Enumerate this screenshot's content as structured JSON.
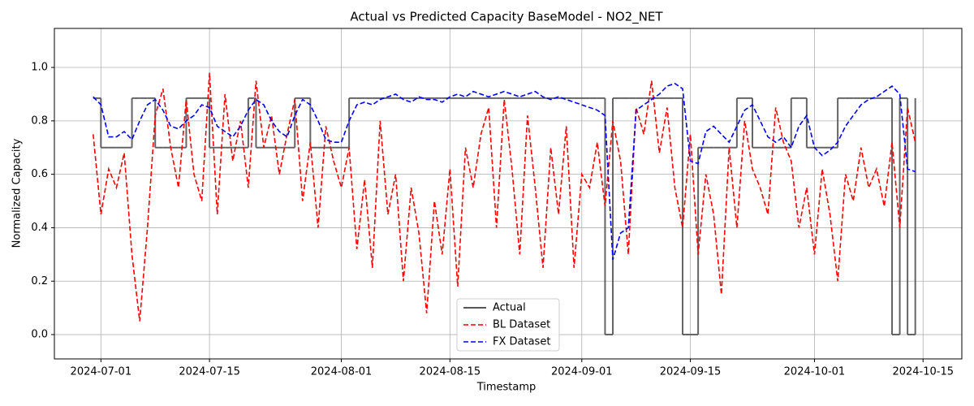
{
  "chart_data": {
    "type": "line",
    "title": "Actual vs Predicted Capacity BaseModel - NO2_NET",
    "x_label": "Timestamp",
    "y_label": "Normalized Capacity",
    "x": [
      "2024-06-30",
      "2024-07-01",
      "2024-07-02",
      "2024-07-03",
      "2024-07-04",
      "2024-07-05",
      "2024-07-06",
      "2024-07-07",
      "2024-07-08",
      "2024-07-09",
      "2024-07-10",
      "2024-07-11",
      "2024-07-12",
      "2024-07-13",
      "2024-07-14",
      "2024-07-15",
      "2024-07-16",
      "2024-07-17",
      "2024-07-18",
      "2024-07-19",
      "2024-07-20",
      "2024-07-21",
      "2024-07-22",
      "2024-07-23",
      "2024-07-24",
      "2024-07-25",
      "2024-07-26",
      "2024-07-27",
      "2024-07-28",
      "2024-07-29",
      "2024-07-30",
      "2024-07-31",
      "2024-08-01",
      "2024-08-02",
      "2024-08-03",
      "2024-08-04",
      "2024-08-05",
      "2024-08-06",
      "2024-08-07",
      "2024-08-08",
      "2024-08-09",
      "2024-08-10",
      "2024-08-11",
      "2024-08-12",
      "2024-08-13",
      "2024-08-14",
      "2024-08-15",
      "2024-08-16",
      "2024-08-17",
      "2024-08-18",
      "2024-08-19",
      "2024-08-20",
      "2024-08-21",
      "2024-08-22",
      "2024-08-23",
      "2024-08-24",
      "2024-08-25",
      "2024-08-26",
      "2024-08-27",
      "2024-08-28",
      "2024-08-29",
      "2024-08-30",
      "2024-08-31",
      "2024-09-01",
      "2024-09-02",
      "2024-09-03",
      "2024-09-04",
      "2024-09-05",
      "2024-09-06",
      "2024-09-07",
      "2024-09-08",
      "2024-09-09",
      "2024-09-10",
      "2024-09-11",
      "2024-09-12",
      "2024-09-13",
      "2024-09-14",
      "2024-09-15",
      "2024-09-16",
      "2024-09-17",
      "2024-09-18",
      "2024-09-19",
      "2024-09-20",
      "2024-09-21",
      "2024-09-22",
      "2024-09-23",
      "2024-09-24",
      "2024-09-25",
      "2024-09-26",
      "2024-09-27",
      "2024-09-28",
      "2024-09-29",
      "2024-09-30",
      "2024-10-01",
      "2024-10-02",
      "2024-10-03",
      "2024-10-04",
      "2024-10-05",
      "2024-10-06",
      "2024-10-07",
      "2024-10-08",
      "2024-10-09",
      "2024-10-10",
      "2024-10-11",
      "2024-10-12",
      "2024-10-13",
      "2024-10-14"
    ],
    "series": [
      {
        "name": "Actual",
        "color": "#555555",
        "linestyle": "solid",
        "step": "post",
        "values": [
          0.885,
          0.7,
          0.7,
          0.7,
          0.7,
          0.885,
          0.885,
          0.885,
          0.7,
          0.7,
          0.7,
          0.7,
          0.885,
          0.885,
          0.885,
          0.7,
          0.7,
          0.7,
          0.7,
          0.7,
          0.885,
          0.7,
          0.7,
          0.7,
          0.7,
          0.7,
          0.885,
          0.885,
          0.7,
          0.7,
          0.7,
          0.7,
          0.7,
          0.885,
          0.885,
          0.885,
          0.885,
          0.885,
          0.885,
          0.885,
          0.885,
          0.885,
          0.885,
          0.885,
          0.885,
          0.885,
          0.885,
          0.885,
          0.885,
          0.885,
          0.885,
          0.885,
          0.885,
          0.885,
          0.885,
          0.885,
          0.885,
          0.885,
          0.885,
          0.885,
          0.885,
          0.885,
          0.885,
          0.885,
          0.885,
          0.885,
          0,
          0.885,
          0.885,
          0.885,
          0.885,
          0.885,
          0.885,
          0.885,
          0.885,
          0.885,
          0,
          0,
          0.7,
          0.7,
          0.7,
          0.7,
          0.7,
          0.885,
          0.885,
          0.7,
          0.7,
          0.7,
          0.7,
          0.7,
          0.885,
          0.885,
          0.7,
          0.7,
          0.7,
          0.7,
          0.885,
          0.885,
          0.885,
          0.885,
          0.885,
          0.885,
          0.885,
          0,
          0.885,
          0,
          0.885
        ]
      },
      {
        "name": "BL Dataset",
        "color": "#ff0000",
        "linestyle": "dashed",
        "values": [
          0.75,
          0.45,
          0.62,
          0.55,
          0.68,
          0.3,
          0.05,
          0.4,
          0.82,
          0.92,
          0.7,
          0.55,
          0.88,
          0.6,
          0.5,
          0.98,
          0.45,
          0.9,
          0.65,
          0.8,
          0.55,
          0.95,
          0.7,
          0.82,
          0.6,
          0.75,
          0.88,
          0.5,
          0.72,
          0.4,
          0.78,
          0.65,
          0.55,
          0.7,
          0.32,
          0.58,
          0.25,
          0.8,
          0.45,
          0.6,
          0.2,
          0.55,
          0.38,
          0.08,
          0.5,
          0.3,
          0.62,
          0.18,
          0.7,
          0.55,
          0.75,
          0.85,
          0.4,
          0.88,
          0.62,
          0.3,
          0.82,
          0.55,
          0.25,
          0.7,
          0.45,
          0.78,
          0.25,
          0.6,
          0.55,
          0.72,
          0.48,
          0.8,
          0.65,
          0.3,
          0.85,
          0.75,
          0.95,
          0.68,
          0.85,
          0.55,
          0.4,
          0.75,
          0.3,
          0.6,
          0.45,
          0.15,
          0.7,
          0.4,
          0.8,
          0.62,
          0.55,
          0.45,
          0.85,
          0.72,
          0.65,
          0.4,
          0.55,
          0.3,
          0.62,
          0.45,
          0.2,
          0.6,
          0.5,
          0.7,
          0.55,
          0.62,
          0.48,
          0.72,
          0.4,
          0.85,
          0.72
        ]
      },
      {
        "name": "FX Dataset",
        "color": "#0000ff",
        "linestyle": "dashed",
        "values": [
          0.89,
          0.86,
          0.74,
          0.74,
          0.76,
          0.73,
          0.8,
          0.86,
          0.88,
          0.84,
          0.78,
          0.77,
          0.8,
          0.82,
          0.86,
          0.85,
          0.78,
          0.76,
          0.74,
          0.78,
          0.84,
          0.88,
          0.86,
          0.8,
          0.76,
          0.74,
          0.82,
          0.88,
          0.86,
          0.8,
          0.73,
          0.72,
          0.72,
          0.8,
          0.86,
          0.87,
          0.86,
          0.88,
          0.89,
          0.9,
          0.88,
          0.87,
          0.89,
          0.88,
          0.88,
          0.87,
          0.89,
          0.9,
          0.89,
          0.91,
          0.9,
          0.89,
          0.9,
          0.91,
          0.9,
          0.89,
          0.9,
          0.91,
          0.89,
          0.88,
          0.89,
          0.88,
          0.87,
          0.86,
          0.85,
          0.84,
          0.82,
          0.28,
          0.38,
          0.4,
          0.84,
          0.86,
          0.88,
          0.9,
          0.93,
          0.94,
          0.92,
          0.65,
          0.64,
          0.76,
          0.78,
          0.75,
          0.72,
          0.78,
          0.84,
          0.86,
          0.8,
          0.74,
          0.72,
          0.74,
          0.7,
          0.78,
          0.82,
          0.7,
          0.67,
          0.69,
          0.72,
          0.78,
          0.82,
          0.86,
          0.88,
          0.89,
          0.91,
          0.93,
          0.9,
          0.62,
          0.61
        ]
      }
    ],
    "xlim": [
      "2024-06-25",
      "2024-10-20"
    ],
    "xticks": [
      "2024-07-01",
      "2024-07-15",
      "2024-08-01",
      "2024-08-15",
      "2024-09-01",
      "2024-09-15",
      "2024-10-01",
      "2024-10-15"
    ],
    "ylim": [
      -0.091,
      1.146
    ],
    "yticks": [
      {
        "value": 0,
        "label": "0.0"
      },
      {
        "value": 0.2,
        "label": "0.2"
      },
      {
        "value": 0.4,
        "label": "0.4"
      },
      {
        "value": 0.6,
        "label": "0.6"
      },
      {
        "value": 0.8,
        "label": "0.8"
      },
      {
        "value": 1.0,
        "label": "1.0"
      }
    ],
    "grid": true,
    "legend": "lower center"
  }
}
